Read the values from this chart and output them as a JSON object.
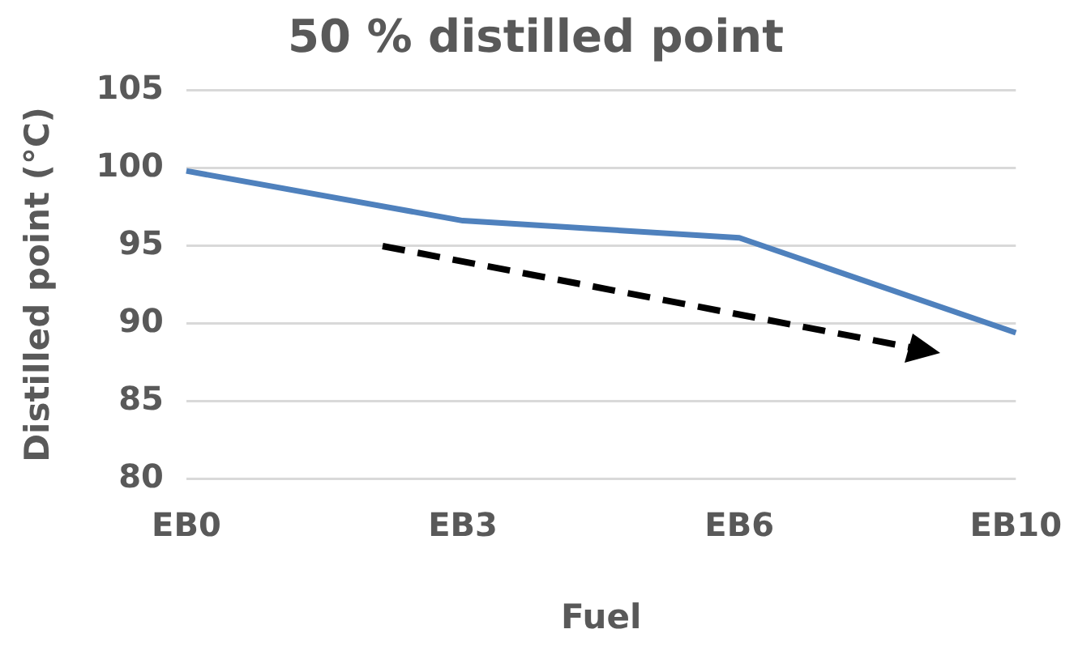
{
  "chart_data": {
    "type": "line",
    "title": "50 % distilled point",
    "xlabel": "Fuel",
    "ylabel": "Distilled point (°C)",
    "categories": [
      "EB0",
      "EB3",
      "EB6",
      "EB10"
    ],
    "series": [
      {
        "color": "#4f81bd",
        "values": [
          99.8,
          96.6,
          95.5,
          89.4
        ]
      }
    ],
    "ylim": [
      80,
      105
    ],
    "yticks": [
      80,
      85,
      90,
      95,
      100,
      105
    ],
    "grid": "y",
    "legend": false,
    "marker": "none",
    "line_style": "solid"
  }
}
